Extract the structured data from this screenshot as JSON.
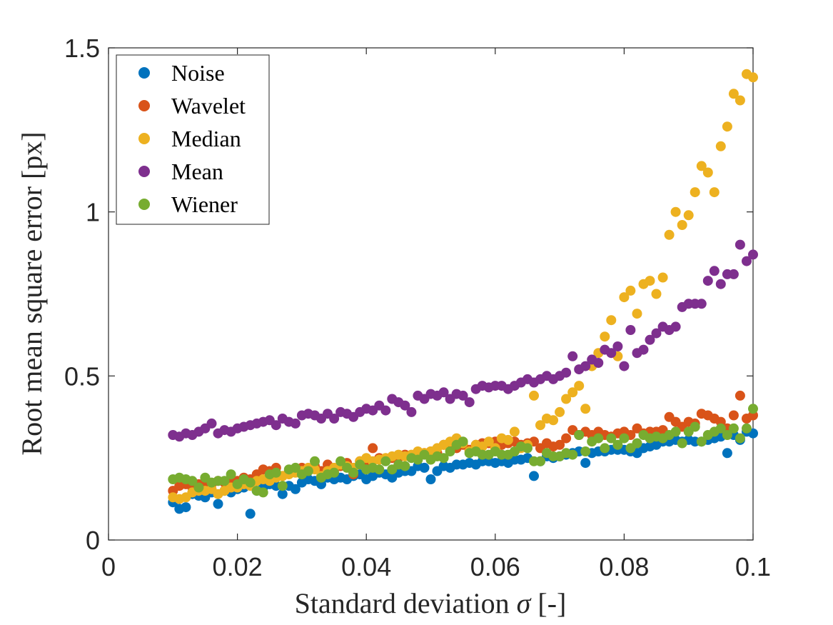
{
  "chart_data": {
    "type": "scatter",
    "xlabel_text": "Standard deviation",
    "xlabel_symbol": "σ",
    "xlabel_unit": "[-]",
    "ylabel": "Root mean square error [px]",
    "xlim": [
      0,
      0.1
    ],
    "ylim": [
      0,
      1.5
    ],
    "x_ticks": [
      "0",
      "0.02",
      "0.04",
      "0.06",
      "0.08",
      "0.1"
    ],
    "y_ticks": [
      "0",
      "0.5",
      "1",
      "1.5"
    ],
    "grid": false,
    "legend_position": "top-left",
    "x": [
      0.01,
      0.011,
      0.012,
      0.013,
      0.014,
      0.015,
      0.016,
      0.017,
      0.018,
      0.019,
      0.02,
      0.021,
      0.022,
      0.023,
      0.024,
      0.025,
      0.026,
      0.027,
      0.028,
      0.029,
      0.03,
      0.031,
      0.032,
      0.033,
      0.034,
      0.035,
      0.036,
      0.037,
      0.038,
      0.039,
      0.04,
      0.041,
      0.042,
      0.043,
      0.044,
      0.045,
      0.046,
      0.047,
      0.048,
      0.049,
      0.05,
      0.051,
      0.052,
      0.053,
      0.054,
      0.055,
      0.056,
      0.057,
      0.058,
      0.059,
      0.06,
      0.061,
      0.062,
      0.063,
      0.064,
      0.065,
      0.066,
      0.067,
      0.068,
      0.069,
      0.07,
      0.071,
      0.072,
      0.073,
      0.074,
      0.075,
      0.076,
      0.077,
      0.078,
      0.079,
      0.08,
      0.081,
      0.082,
      0.083,
      0.084,
      0.085,
      0.086,
      0.087,
      0.088,
      0.089,
      0.09,
      0.091,
      0.092,
      0.093,
      0.094,
      0.095,
      0.096,
      0.097,
      0.098,
      0.099,
      0.1
    ],
    "series": [
      {
        "name": "Noise",
        "color": "#0072BD",
        "values": [
          0.115,
          0.095,
          0.1,
          0.14,
          0.135,
          0.13,
          0.145,
          0.11,
          0.15,
          0.145,
          0.155,
          0.16,
          0.08,
          0.15,
          0.16,
          0.17,
          0.165,
          0.14,
          0.165,
          0.155,
          0.175,
          0.185,
          0.18,
          0.17,
          0.19,
          0.185,
          0.19,
          0.185,
          0.195,
          0.2,
          0.185,
          0.195,
          0.205,
          0.2,
          0.19,
          0.205,
          0.21,
          0.21,
          0.225,
          0.22,
          0.185,
          0.21,
          0.225,
          0.22,
          0.23,
          0.23,
          0.235,
          0.23,
          0.24,
          0.24,
          0.235,
          0.24,
          0.235,
          0.245,
          0.245,
          0.25,
          0.195,
          0.24,
          0.255,
          0.25,
          0.255,
          0.26,
          0.265,
          0.27,
          0.235,
          0.265,
          0.27,
          0.27,
          0.275,
          0.275,
          0.275,
          0.27,
          0.265,
          0.28,
          0.285,
          0.29,
          0.3,
          0.3,
          0.305,
          0.3,
          0.305,
          0.3,
          0.3,
          0.305,
          0.31,
          0.315,
          0.265,
          0.32,
          0.305,
          0.33,
          0.325
        ]
      },
      {
        "name": "Wavelet",
        "color": "#D95319",
        "values": [
          0.15,
          0.165,
          0.17,
          0.16,
          0.17,
          0.175,
          0.17,
          0.18,
          0.175,
          0.185,
          0.18,
          0.19,
          0.185,
          0.2,
          0.215,
          0.21,
          0.22,
          0.195,
          0.21,
          0.215,
          0.22,
          0.215,
          0.225,
          0.21,
          0.23,
          0.215,
          0.225,
          0.235,
          0.2,
          0.24,
          0.23,
          0.28,
          0.25,
          0.245,
          0.25,
          0.25,
          0.26,
          0.255,
          0.26,
          0.265,
          0.27,
          0.265,
          0.29,
          0.285,
          0.28,
          0.29,
          0.275,
          0.29,
          0.295,
          0.295,
          0.3,
          0.29,
          0.295,
          0.3,
          0.29,
          0.295,
          0.3,
          0.28,
          0.295,
          0.285,
          0.29,
          0.31,
          0.335,
          0.32,
          0.33,
          0.32,
          0.33,
          0.32,
          0.315,
          0.325,
          0.33,
          0.32,
          0.34,
          0.325,
          0.33,
          0.33,
          0.335,
          0.375,
          0.36,
          0.345,
          0.36,
          0.355,
          0.385,
          0.38,
          0.37,
          0.36,
          0.34,
          0.38,
          0.44,
          0.37,
          0.38
        ]
      },
      {
        "name": "Median",
        "color": "#EDB120",
        "values": [
          0.13,
          0.125,
          0.13,
          0.145,
          0.15,
          0.15,
          0.155,
          0.14,
          0.15,
          0.16,
          0.16,
          0.17,
          0.165,
          0.18,
          0.185,
          0.18,
          0.19,
          0.195,
          0.2,
          0.205,
          0.21,
          0.22,
          0.215,
          0.195,
          0.21,
          0.22,
          0.23,
          0.225,
          0.22,
          0.24,
          0.25,
          0.24,
          0.245,
          0.25,
          0.255,
          0.26,
          0.255,
          0.26,
          0.27,
          0.265,
          0.27,
          0.28,
          0.29,
          0.3,
          0.31,
          0.295,
          0.27,
          0.29,
          0.285,
          0.3,
          0.28,
          0.31,
          0.305,
          0.33,
          0.28,
          0.29,
          0.44,
          0.35,
          0.37,
          0.365,
          0.39,
          0.43,
          0.45,
          0.47,
          0.4,
          0.53,
          0.57,
          0.62,
          0.67,
          0.56,
          0.74,
          0.76,
          0.69,
          0.78,
          0.79,
          0.75,
          0.8,
          0.93,
          1.0,
          0.96,
          0.99,
          1.06,
          1.14,
          1.12,
          1.06,
          1.2,
          1.26,
          1.36,
          1.34,
          1.42,
          1.41
        ]
      },
      {
        "name": "Mean",
        "color": "#7E2F8E",
        "values": [
          0.32,
          0.315,
          0.325,
          0.32,
          0.33,
          0.34,
          0.355,
          0.325,
          0.335,
          0.33,
          0.34,
          0.345,
          0.35,
          0.355,
          0.36,
          0.365,
          0.35,
          0.37,
          0.36,
          0.355,
          0.38,
          0.385,
          0.38,
          0.37,
          0.385,
          0.37,
          0.39,
          0.385,
          0.375,
          0.39,
          0.4,
          0.395,
          0.41,
          0.395,
          0.43,
          0.42,
          0.41,
          0.39,
          0.44,
          0.43,
          0.445,
          0.44,
          0.45,
          0.43,
          0.445,
          0.44,
          0.42,
          0.46,
          0.47,
          0.465,
          0.47,
          0.47,
          0.46,
          0.47,
          0.48,
          0.49,
          0.48,
          0.49,
          0.5,
          0.49,
          0.5,
          0.51,
          0.56,
          0.52,
          0.53,
          0.55,
          0.54,
          0.58,
          0.57,
          0.59,
          0.53,
          0.64,
          0.57,
          0.58,
          0.61,
          0.63,
          0.65,
          0.64,
          0.65,
          0.71,
          0.72,
          0.72,
          0.72,
          0.79,
          0.82,
          0.78,
          0.81,
          0.81,
          0.9,
          0.85,
          0.87
        ]
      },
      {
        "name": "Wiener",
        "color": "#77AC30",
        "values": [
          0.185,
          0.19,
          0.185,
          0.18,
          0.16,
          0.19,
          0.175,
          0.18,
          0.18,
          0.2,
          0.17,
          0.185,
          0.175,
          0.15,
          0.145,
          0.2,
          0.205,
          0.165,
          0.215,
          0.22,
          0.2,
          0.21,
          0.24,
          0.19,
          0.2,
          0.205,
          0.24,
          0.22,
          0.205,
          0.23,
          0.215,
          0.22,
          0.215,
          0.24,
          0.215,
          0.23,
          0.225,
          0.25,
          0.245,
          0.26,
          0.245,
          0.255,
          0.25,
          0.27,
          0.29,
          0.3,
          0.265,
          0.27,
          0.26,
          0.26,
          0.27,
          0.26,
          0.26,
          0.27,
          0.285,
          0.28,
          0.24,
          0.24,
          0.265,
          0.255,
          0.255,
          0.265,
          0.26,
          0.32,
          0.27,
          0.3,
          0.31,
          0.28,
          0.31,
          0.29,
          0.31,
          0.28,
          0.295,
          0.32,
          0.31,
          0.315,
          0.31,
          0.32,
          0.33,
          0.295,
          0.33,
          0.345,
          0.3,
          0.32,
          0.33,
          0.34,
          0.32,
          0.34,
          0.31,
          0.34,
          0.4
        ]
      }
    ]
  }
}
